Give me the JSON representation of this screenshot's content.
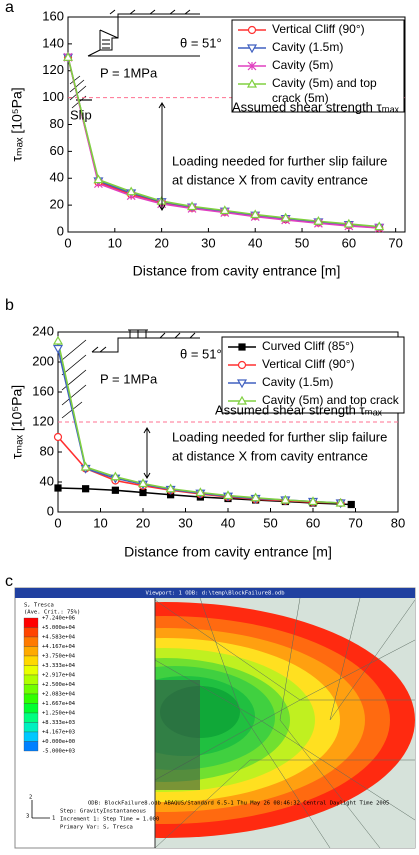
{
  "chart_data": [
    {
      "type": "line",
      "label": "a",
      "x_label": "Distance from cavity entrance [m]",
      "y_label": "τₘₐₓ [10⁵Pa]",
      "xlim": [
        0,
        72
      ],
      "xticks": [
        0,
        10,
        20,
        30,
        40,
        50,
        60,
        70
      ],
      "ylim": [
        0,
        160
      ],
      "yticks": [
        0,
        20,
        40,
        60,
        80,
        100,
        120,
        140,
        160
      ],
      "threshold": 100,
      "threshold_color": "#ff7090",
      "annotations": {
        "strength": "Assumed shear strength τₘₐₓ",
        "note": [
          "Loading needed for further slip failure",
          "at distance X from cavity entrance"
        ],
        "pressure": "P = 1MPa",
        "angle": "θ = 51°",
        "slip": "Slip"
      },
      "series": [
        {
          "name": "Vertical Cliff (90°)",
          "color": "#ff3030",
          "marker": "circle",
          "x": [
            0,
            6.5,
            13.5,
            20,
            26.5,
            33.5,
            40,
            46.5,
            53.5,
            60,
            66.5
          ],
          "values": [
            130,
            37,
            28,
            22,
            18,
            15,
            12,
            9.5,
            7,
            5,
            3
          ]
        },
        {
          "name": "Cavity (1.5m)",
          "color": "#4060c0",
          "marker": "triangle-down",
          "x": [
            0,
            6.5,
            13.5,
            20,
            26.5,
            33.5,
            40,
            46.5,
            53.5,
            60,
            66.5
          ],
          "values": [
            130,
            38,
            29,
            22.5,
            18.5,
            15.5,
            12.5,
            10,
            7.5,
            5.5,
            3.5
          ]
        },
        {
          "name": "Cavity (5m)",
          "color": "#e040c0",
          "marker": "star",
          "x": [
            0,
            6.5,
            13.5,
            20,
            26.5,
            33.5,
            40,
            46.5,
            53.5,
            60,
            66.5
          ],
          "values": [
            130,
            36,
            27,
            21,
            17.5,
            14.5,
            11.5,
            9,
            6.5,
            4.5,
            3
          ]
        },
        {
          "name": "Cavity (5m) and top crack (5m)",
          "color": "#80d040",
          "marker": "triangle-up",
          "x": [
            0,
            6.5,
            13.5,
            20,
            26.5,
            33.5,
            40,
            46.5,
            53.5,
            60,
            66.5
          ],
          "values": [
            130,
            39,
            30,
            23,
            19,
            16,
            13,
            10.5,
            8,
            6,
            4
          ]
        }
      ]
    },
    {
      "type": "line",
      "label": "b",
      "x_label": "Distance from cavity entrance [m]",
      "y_label": "τₘₐₓ [10⁵Pa]",
      "xlim": [
        0,
        80
      ],
      "xticks": [
        0,
        10,
        20,
        30,
        40,
        50,
        60,
        70,
        80
      ],
      "ylim": [
        0,
        240
      ],
      "yticks": [
        0,
        40,
        80,
        120,
        160,
        200,
        240
      ],
      "threshold": 120,
      "threshold_color": "#ff7090",
      "annotations": {
        "strength": "Assumed shear strength τₘₐₓ",
        "note": [
          "Loading needed for further slip failure",
          "at distance X from cavity entrance"
        ],
        "pressure": "P = 1MPa",
        "angle": "θ = 51°"
      },
      "series": [
        {
          "name": "Curved Cliff (85°)",
          "color": "#000000",
          "marker": "square",
          "x": [
            0,
            6.5,
            13.5,
            20,
            26.5,
            33.5,
            40,
            46.5,
            53.5,
            60,
            69
          ],
          "values": [
            32,
            31,
            29,
            26,
            23,
            20,
            18,
            16,
            14,
            12,
            10
          ]
        },
        {
          "name": "Vertical Cliff (90°)",
          "color": "#ff3030",
          "marker": "circle",
          "x": [
            0,
            6.5,
            13.5,
            20,
            26.5,
            33.5,
            40,
            46.5,
            53.5,
            60,
            66.5
          ],
          "values": [
            100,
            58,
            42,
            35,
            29,
            24,
            20,
            17,
            15,
            13,
            12
          ]
        },
        {
          "name": "Cavity (1.5m)",
          "color": "#4060c0",
          "marker": "triangle-down",
          "x": [
            0,
            6.5,
            13.5,
            20,
            26.5,
            33.5,
            40,
            46.5,
            53.5,
            60,
            66.5
          ],
          "values": [
            218,
            58,
            45,
            37,
            30,
            25,
            21,
            18,
            16,
            14,
            12
          ]
        },
        {
          "name": "Cavity (5m) and top crack",
          "color": "#80d040",
          "marker": "triangle-up",
          "x": [
            0,
            6.5,
            13.5,
            20,
            26.5,
            33.5,
            40,
            46.5,
            53.5,
            60,
            66.5
          ],
          "values": [
            228,
            60,
            47,
            38,
            31,
            26,
            22,
            19,
            16,
            14,
            12
          ]
        }
      ]
    }
  ],
  "image_panel": {
    "label": "c",
    "viewport_title": "Viewport: 1    ODB: d:\\temp\\BlockFailure8.odb",
    "legend_title": "S, Tresca",
    "legend_subtitle": "(Ave. Crit.: 75%)",
    "legend_values": [
      "+7.240e+06",
      "+5.000e+04",
      "+4.583e+04",
      "+4.167e+04",
      "+3.750e+04",
      "+3.333e+04",
      "+2.917e+04",
      "+2.500e+04",
      "+2.083e+04",
      "+1.667e+04",
      "+1.250e+04",
      "+8.333e+03",
      "+4.167e+03",
      "+0.000e+00",
      "-5.000e+03"
    ],
    "footer": [
      "ODB: BlockFailure8.odb    ABAQUS/Standard 6.5-1    Thu May 26 08:46:32 Central Daylight Time 2005",
      "Step: GravityInstantaneous",
      "Increment      1: Step Time =    1.000",
      "Primary Var: S, Tresca"
    ],
    "triad": [
      "2",
      "3",
      "1"
    ]
  }
}
